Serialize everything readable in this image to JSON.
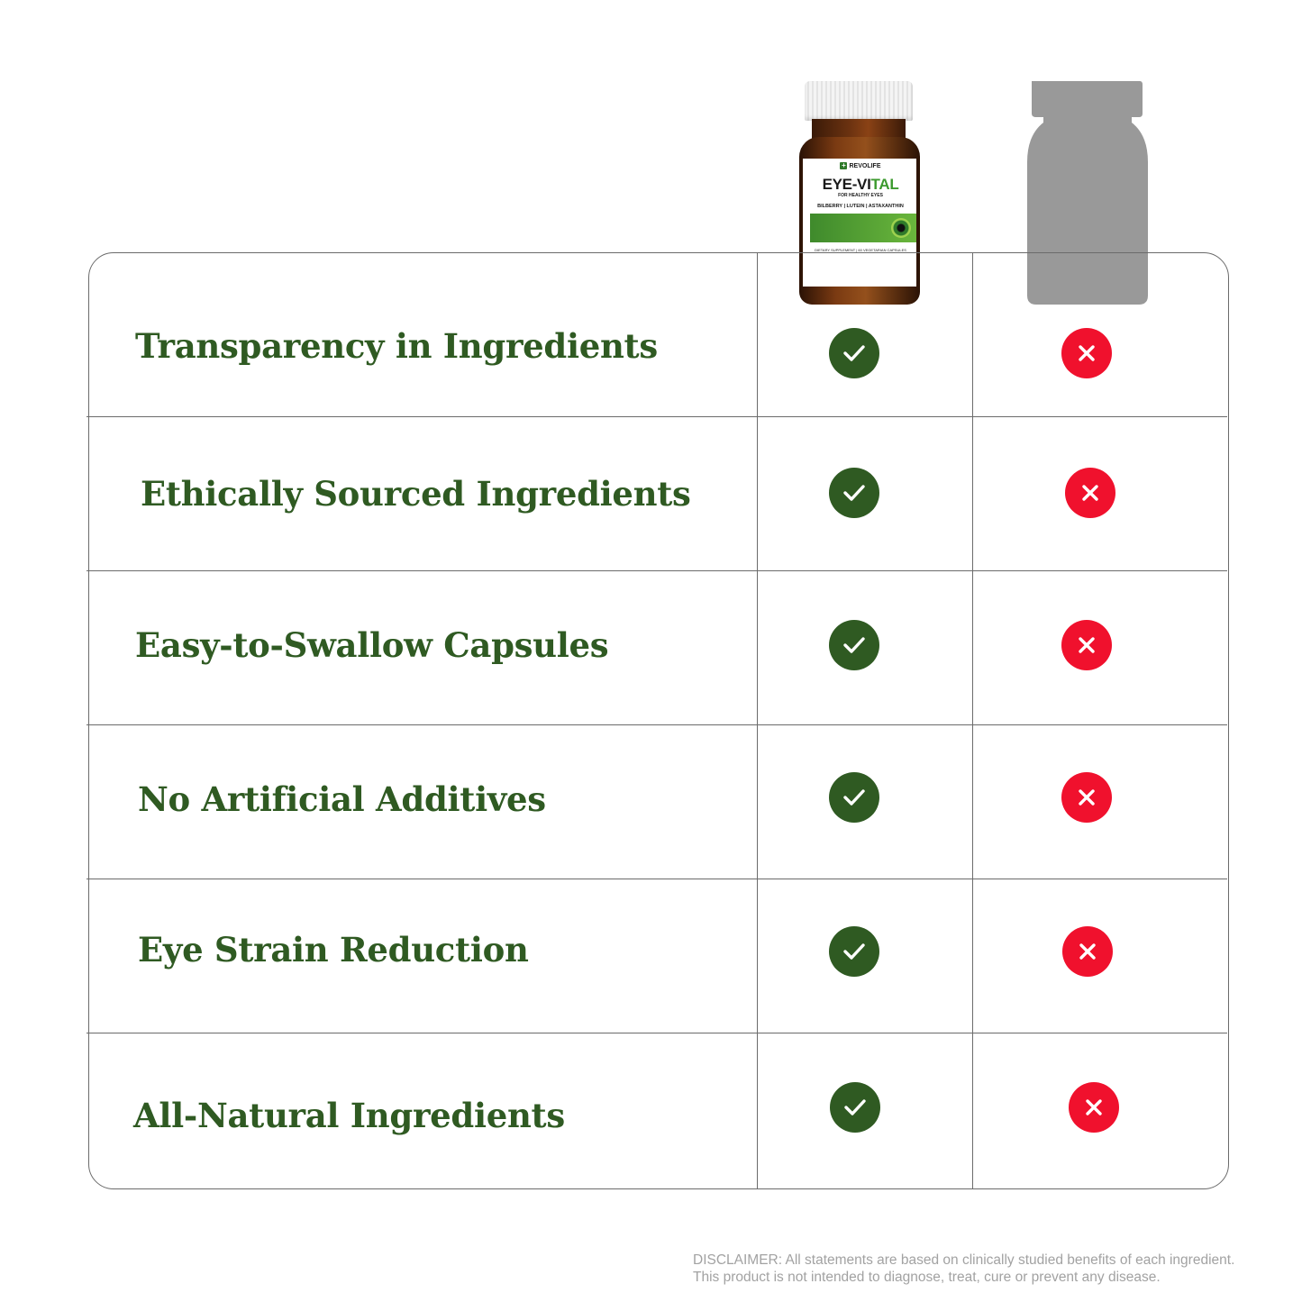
{
  "product": {
    "brand": "REVOLIFE",
    "name_part1": "EYE-VI",
    "name_part2": "TAL",
    "tagline": "FOR HEALTHY EYES",
    "ingredients": "BILBERRY | LUTEIN | ASTAXANTHIN",
    "footer": "DIETARY SUPPLEMENT | 60 VEGETARIAN CAPSULES"
  },
  "rows": [
    {
      "label": "Transparency in Ingredients",
      "product": true,
      "generic": false
    },
    {
      "label": "Ethically Sourced Ingredients",
      "product": true,
      "generic": false
    },
    {
      "label": "Easy-to-Swallow Capsules",
      "product": true,
      "generic": false
    },
    {
      "label": "No Artificial Additives",
      "product": true,
      "generic": false
    },
    {
      "label": "Eye Strain Reduction",
      "product": true,
      "generic": false
    },
    {
      "label": "All-Natural Ingredients",
      "product": true,
      "generic": false
    }
  ],
  "disclaimer": {
    "line1": "DISCLAIMER: All statements are based on clinically studied benefits of each ingredient.",
    "line2": "This product is not intended to diagnose, treat, cure or prevent any disease."
  },
  "colors": {
    "label_green": "#2f5a22",
    "check_bg": "#2f5a22",
    "cross_bg": "#f0112d",
    "grid_line": "#6b6b6b",
    "generic_bottle": "#999999",
    "disclaimer_text": "#a2a2a2"
  },
  "icons": {
    "yes": "check-icon",
    "no": "cross-icon"
  }
}
